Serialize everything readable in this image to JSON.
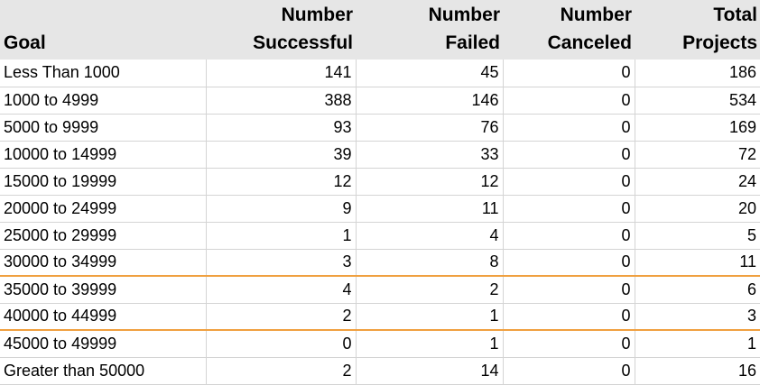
{
  "table": {
    "headers": [
      {
        "line1": "",
        "line2": "Goal"
      },
      {
        "line1": "Number",
        "line2": "Successful"
      },
      {
        "line1": "Number",
        "line2": "Failed"
      },
      {
        "line1": "Number",
        "line2": "Canceled"
      },
      {
        "line1": "Total",
        "line2": "Projects"
      }
    ],
    "rows": [
      {
        "goal": "Less Than 1000",
        "successful": "141",
        "failed": "45",
        "canceled": "0",
        "total": "186"
      },
      {
        "goal": "1000 to 4999",
        "successful": "388",
        "failed": "146",
        "canceled": "0",
        "total": "534"
      },
      {
        "goal": "5000 to 9999",
        "successful": "93",
        "failed": "76",
        "canceled": "0",
        "total": "169"
      },
      {
        "goal": "10000 to 14999",
        "successful": "39",
        "failed": "33",
        "canceled": "0",
        "total": "72"
      },
      {
        "goal": "15000 to 19999",
        "successful": "12",
        "failed": "12",
        "canceled": "0",
        "total": "24"
      },
      {
        "goal": "20000 to 24999",
        "successful": "9",
        "failed": "11",
        "canceled": "0",
        "total": "20"
      },
      {
        "goal": "25000 to 29999",
        "successful": "1",
        "failed": "4",
        "canceled": "0",
        "total": "5"
      },
      {
        "goal": "30000 to 34999",
        "successful": "3",
        "failed": "8",
        "canceled": "0",
        "total": "11"
      },
      {
        "goal": "35000 to 39999",
        "successful": "4",
        "failed": "2",
        "canceled": "0",
        "total": "6"
      },
      {
        "goal": "40000 to 44999",
        "successful": "2",
        "failed": "1",
        "canceled": "0",
        "total": "3"
      },
      {
        "goal": "45000 to 49999",
        "successful": "0",
        "failed": "1",
        "canceled": "0",
        "total": "1"
      },
      {
        "goal": "Greater than 50000",
        "successful": "2",
        "failed": "14",
        "canceled": "0",
        "total": "16"
      }
    ],
    "highlight_color": "#f0a040",
    "header_background": "#e6e6e6",
    "grid_color": "#d4d4d4"
  }
}
